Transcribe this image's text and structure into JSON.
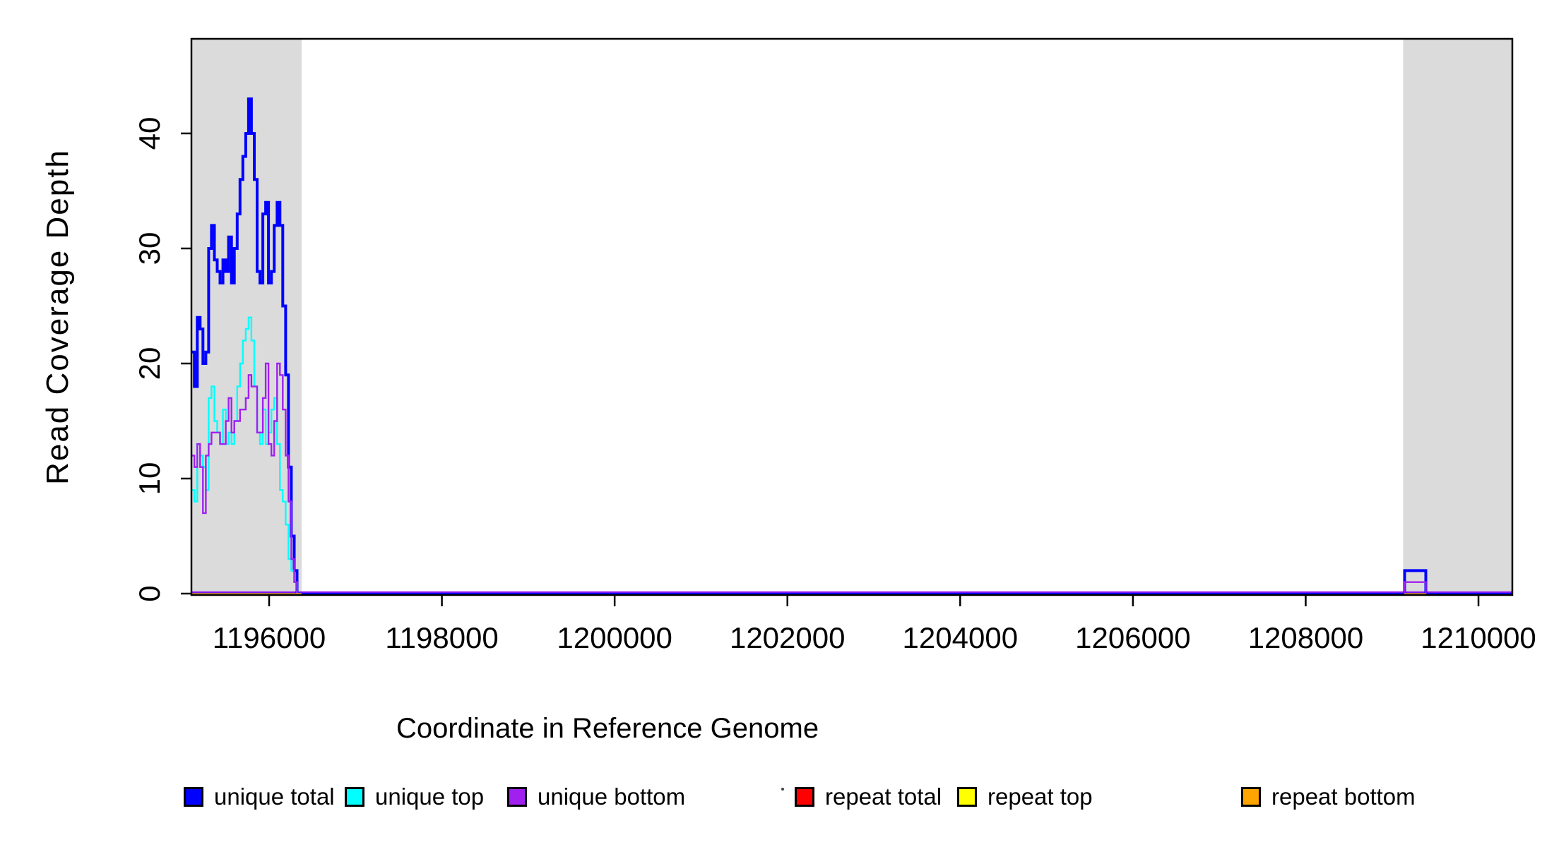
{
  "figure": {
    "xlabel": "Coordinate in Reference Genome",
    "ylabel": "Read Coverage Depth"
  },
  "chart_data": {
    "type": "line",
    "subtype": "step-coverage-plot",
    "title": "",
    "xlabel": "Coordinate in Reference Genome",
    "ylabel": "Read Coverage Depth",
    "xlim": [
      1195100,
      1210390
    ],
    "ylim": [
      0,
      48
    ],
    "grid": false,
    "x_ticks": [
      "1196000",
      "1198000",
      "1200000",
      "1202000",
      "1204000",
      "1206000",
      "1208000",
      "1210000"
    ],
    "x_tick_values": [
      1196000,
      1198000,
      1200000,
      1202000,
      1204000,
      1206000,
      1208000,
      1210000
    ],
    "y_ticks": [
      "0",
      "10",
      "20",
      "30",
      "40"
    ],
    "y_tick_values": [
      0,
      10,
      20,
      30,
      40
    ],
    "shaded_regions": [
      {
        "name": "left-repeat-region",
        "start": 1195100,
        "end": 1196376,
        "color": "#DBDBDB"
      },
      {
        "name": "right-repeat-region",
        "start": 1209128,
        "end": 1210390,
        "color": "#DBDBDB"
      }
    ],
    "step_series": [
      {
        "name": "unique total",
        "color": "#0000FF",
        "line_width": 4,
        "x_start": 1195102,
        "step": 33,
        "values": [
          21,
          18,
          24,
          23,
          20,
          21,
          30,
          32,
          29,
          28,
          27,
          29,
          28,
          31,
          27,
          30,
          33,
          36,
          38,
          40,
          43,
          40,
          36,
          28,
          27,
          33,
          34,
          27,
          28,
          32,
          34,
          32,
          25,
          19,
          11,
          5,
          2,
          0
        ]
      },
      {
        "name": "unique top",
        "color": "#00FFFF",
        "line_width": 2.4,
        "x_start": 1195102,
        "step": 33,
        "values": [
          9,
          8,
          13,
          12,
          11,
          9,
          17,
          18,
          15,
          14,
          13,
          16,
          13,
          14,
          13,
          15,
          18,
          20,
          22,
          23,
          24,
          22,
          18,
          14,
          13,
          16,
          13,
          14,
          16,
          17,
          13,
          9,
          8,
          6,
          3,
          2,
          1,
          0
        ]
      },
      {
        "name": "unique bottom",
        "color": "#A020F0",
        "line_width": 2.4,
        "x_start": 1195102,
        "step": 33,
        "values": [
          12,
          11,
          13,
          11,
          7,
          12,
          13,
          14,
          14,
          14,
          13,
          13,
          15,
          17,
          14,
          15,
          15,
          16,
          16,
          17,
          19,
          18,
          18,
          14,
          14,
          17,
          20,
          13,
          12,
          15,
          20,
          19,
          16,
          12,
          8,
          3,
          1,
          0
        ]
      }
    ],
    "baseline_series": [
      {
        "name": "unique total zero line",
        "color": "#0000FF",
        "line_width": 3.5,
        "start": 1195100,
        "end": 1210390,
        "value": 0,
        "dy": 0
      },
      {
        "name": "unique bottom zero line",
        "color": "#A020F0",
        "line_width": 2,
        "start": 1195100,
        "end": 1210390,
        "value": 0,
        "dy": -2.2
      }
    ],
    "repeat_segments": [
      {
        "name": "repeat bottom left segment",
        "color": "#FFA500",
        "line_width": 3.2,
        "start": 1195100,
        "end": 1196376,
        "value": 0
      },
      {
        "name": "repeat bottom right segment",
        "color": "#FFA500",
        "line_width": 3.2,
        "start": 1209145,
        "end": 1209390,
        "value": 0
      }
    ],
    "right_feature": {
      "name": "right-region-coverage-box",
      "start": 1209145,
      "end": 1209390,
      "unique_total_depth": 2,
      "unique_bottom_depth": 1
    },
    "legend": [
      {
        "label": "unique total",
        "color": "#0000FF"
      },
      {
        "label": "unique top",
        "color": "#00FFFF"
      },
      {
        "label": "unique bottom",
        "color": "#A020F0"
      },
      {
        "label": "repeat total",
        "color": "#FF0000"
      },
      {
        "label": "repeat top",
        "color": "#FFFF00"
      },
      {
        "label": "repeat bottom",
        "color": "#FFA500"
      }
    ]
  }
}
